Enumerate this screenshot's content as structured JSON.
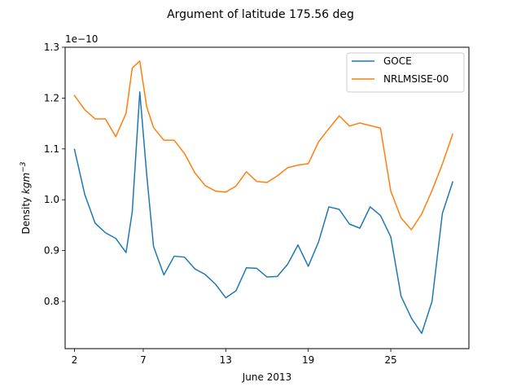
{
  "figure": {
    "title": "Argument of latitude 175.56 deg"
  },
  "chart_data": {
    "type": "line",
    "title": "Argument of latitude 175.56 deg",
    "xlabel": "June 2013",
    "ylabel": "Density kgm-3",
    "ylabel_parts": {
      "main": "Density ",
      "unit": "kgm",
      "exp": "−3"
    },
    "offset_text": "1e−10",
    "xlim": [
      1.32,
      30.68
    ],
    "ylim": [
      0.707,
      1.3
    ],
    "x_ticks": [
      2,
      7,
      13,
      19,
      25
    ],
    "x_tick_labels": [
      "2",
      "7",
      "13",
      "19",
      "25"
    ],
    "y_ticks": [
      0.8,
      0.9,
      1.0,
      1.1,
      1.2,
      1.3
    ],
    "y_tick_labels": [
      "0.8",
      "0.9",
      "1.0",
      "1.1",
      "1.2",
      "1.3"
    ],
    "grid": false,
    "legend": {
      "position": "upper right"
    },
    "series": [
      {
        "name": "GOCE",
        "color": "#1f77b4",
        "x": [
          2,
          2.75,
          3.5,
          4.25,
          5,
          5.75,
          6.2,
          6.75,
          7.25,
          7.75,
          8.5,
          9.25,
          10,
          10.75,
          11.5,
          12.25,
          13,
          13.75,
          14.5,
          15.25,
          16,
          16.75,
          17.5,
          18.25,
          19,
          19.75,
          20.5,
          21.25,
          22,
          22.75,
          23.5,
          24.25,
          25,
          25.75,
          26.5,
          27.25,
          28,
          28.75,
          29.5
        ],
        "y": [
          1.099,
          1.01,
          0.954,
          0.935,
          0.924,
          0.896,
          0.976,
          1.212,
          1.05,
          0.908,
          0.852,
          0.889,
          0.887,
          0.864,
          0.853,
          0.834,
          0.807,
          0.821,
          0.866,
          0.865,
          0.848,
          0.849,
          0.873,
          0.911,
          0.869,
          0.917,
          0.986,
          0.981,
          0.952,
          0.944,
          0.986,
          0.969,
          0.927,
          0.81,
          0.767,
          0.737,
          0.8,
          0.973,
          1.035
        ]
      },
      {
        "name": "NRLMSISE-00",
        "color": "#ff7f0e",
        "x": [
          2,
          2.75,
          3.5,
          4.25,
          5,
          5.75,
          6.2,
          6.75,
          7.25,
          7.75,
          8.5,
          9.25,
          10,
          10.75,
          11.5,
          12.25,
          13,
          13.75,
          14.5,
          15.25,
          16,
          16.75,
          17.5,
          18.25,
          19,
          19.75,
          20.5,
          21.25,
          22,
          22.75,
          23.5,
          24.25,
          25,
          25.75,
          26.5,
          27.25,
          28,
          28.75,
          29.5
        ],
        "y": [
          1.205,
          1.177,
          1.159,
          1.159,
          1.124,
          1.17,
          1.259,
          1.273,
          1.183,
          1.142,
          1.117,
          1.117,
          1.091,
          1.053,
          1.028,
          1.017,
          1.015,
          1.027,
          1.055,
          1.036,
          1.034,
          1.047,
          1.063,
          1.068,
          1.071,
          1.114,
          1.14,
          1.165,
          1.145,
          1.151,
          1.146,
          1.141,
          1.017,
          0.964,
          0.941,
          0.972,
          1.018,
          1.07,
          1.129
        ]
      }
    ]
  }
}
